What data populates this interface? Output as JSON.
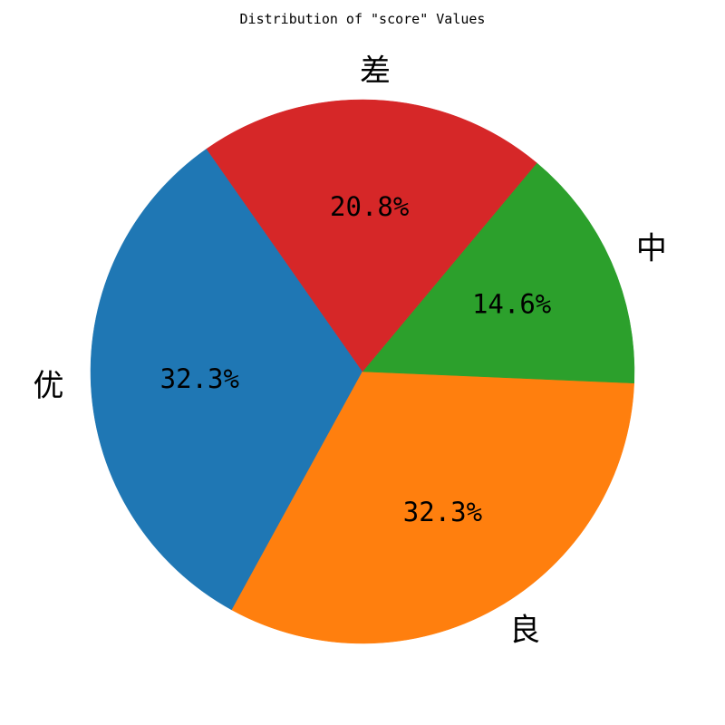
{
  "chart_data": {
    "type": "pie",
    "title": "Distribution of \"score\" Values",
    "categories": [
      "优",
      "良",
      "中",
      "差"
    ],
    "values": [
      32.3,
      32.3,
      14.6,
      20.8
    ],
    "value_labels": [
      "32.3%",
      "32.3%",
      "14.6%",
      "20.8%"
    ],
    "colors": [
      "#1f77b4",
      "#ff7f0e",
      "#2ca02c",
      "#d62728"
    ],
    "start_angle_deg": 125,
    "direction": "counterclockwise",
    "legend": "none"
  }
}
